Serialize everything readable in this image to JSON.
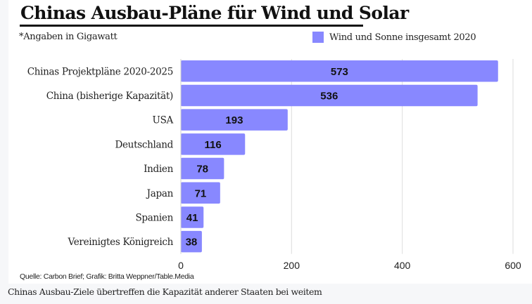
{
  "header": {
    "title": "Chinas Ausbau-Pläne für Wind und Solar",
    "note": "*Angaben in Gigawatt"
  },
  "footer": {
    "source": "Quelle: Carbon Brief; Grafik: Britta Weppner/Table.Media",
    "caption": "Chinas Ausbau-Ziele übertreffen die Kapazität anderer Staaten bei weitem"
  },
  "chart_data": {
    "type": "bar",
    "orientation": "horizontal",
    "title": "Chinas Ausbau-Pläne für Wind und Solar",
    "subtitle": "*Angaben in Gigawatt",
    "xlabel": "",
    "ylabel": "",
    "xlim": [
      0,
      600
    ],
    "xticks": [
      0,
      200,
      400,
      600
    ],
    "grid": true,
    "legend_position": "top-right",
    "categories": [
      "Chinas Projektpläne 2020-2025",
      "China (bisherige Kapazität)",
      "USA",
      "Deutschland",
      "Indien",
      "Japan",
      "Spanien",
      "Vereinigtes Königreich"
    ],
    "series": [
      {
        "name": "Wind und Sonne insgesamt 2020",
        "color": "#8888ff",
        "values": [
          573,
          536,
          193,
          116,
          78,
          71,
          41,
          38
        ]
      }
    ]
  }
}
